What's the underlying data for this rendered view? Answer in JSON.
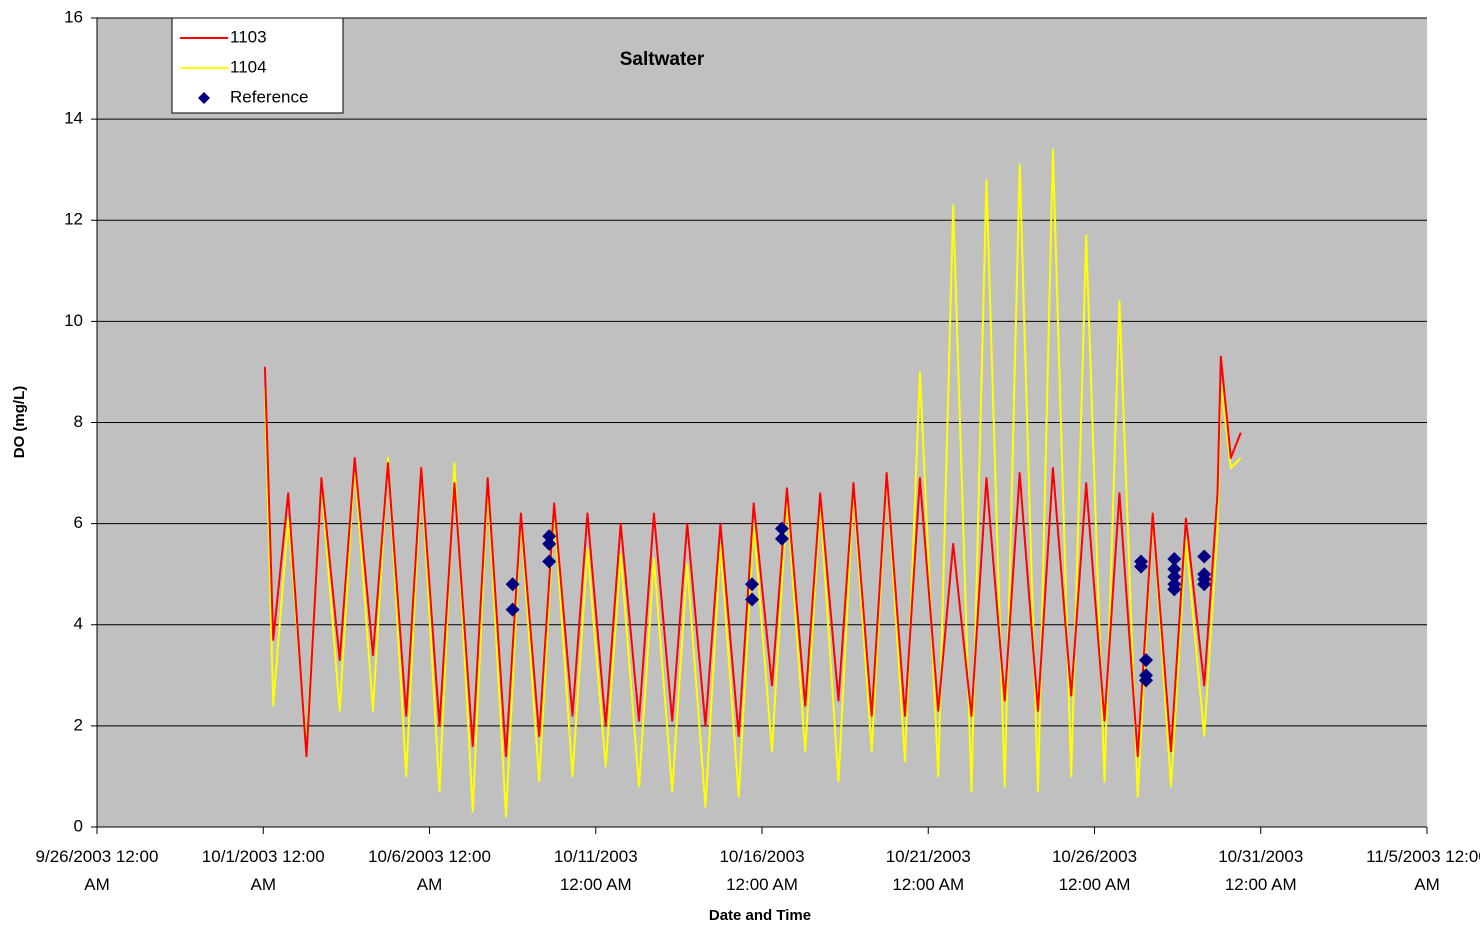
{
  "chart_data": {
    "type": "line",
    "title": "Saltwater",
    "x_label": "Date and Time",
    "y_label": "DO (mg/L)",
    "xlim": [
      0,
      40
    ],
    "xticks": [
      {
        "value": 0,
        "label": "9/26/2003 12:00 AM"
      },
      {
        "value": 5,
        "label": "10/1/2003 12:00 AM"
      },
      {
        "value": 10,
        "label": "10/6/2003 12:00 AM"
      },
      {
        "value": 15,
        "label": "10/11/2003 12:00 AM"
      },
      {
        "value": 20,
        "label": "10/16/2003 12:00 AM"
      },
      {
        "value": 25,
        "label": "10/21/2003 12:00 AM"
      },
      {
        "value": 30,
        "label": "10/26/2003 12:00 AM"
      },
      {
        "value": 35,
        "label": "10/31/2003 12:00 AM"
      },
      {
        "value": 40,
        "label": "11/5/2003 12:00 AM"
      }
    ],
    "ylim": [
      0,
      16
    ],
    "yticks": [
      0,
      2,
      4,
      6,
      8,
      10,
      12,
      14,
      16
    ],
    "grid": true,
    "legend": "top-left",
    "x": [
      5.05,
      5.3,
      5.75,
      6.3,
      6.75,
      7.3,
      7.75,
      8.3,
      8.75,
      9.3,
      9.75,
      10.3,
      10.75,
      11.3,
      11.75,
      12.3,
      12.75,
      13.3,
      13.75,
      14.3,
      14.75,
      15.3,
      15.75,
      16.3,
      16.75,
      17.3,
      17.75,
      18.3,
      18.75,
      19.3,
      19.75,
      20.3,
      20.75,
      21.3,
      21.75,
      22.3,
      22.75,
      23.3,
      23.75,
      24.3,
      24.75,
      25.3,
      25.75,
      26.3,
      26.75,
      27.3,
      27.75,
      28.3,
      28.75,
      29.3,
      29.75,
      30.3,
      30.75,
      31.3,
      31.75,
      32.3,
      32.75,
      33.3,
      33.7,
      33.8,
      34.1,
      34.4
    ],
    "series": [
      {
        "name": "1104",
        "color": "#ffff00",
        "values": [
          8.7,
          2.4,
          6.1,
          1.6,
          6.8,
          2.3,
          7.2,
          2.3,
          7.3,
          1.0,
          7.1,
          0.7,
          7.2,
          0.3,
          6.8,
          0.2,
          6.1,
          0.9,
          6.3,
          1.0,
          5.5,
          1.2,
          5.4,
          0.8,
          5.3,
          0.7,
          5.2,
          0.4,
          5.6,
          0.6,
          6.0,
          1.5,
          6.5,
          1.5,
          6.4,
          0.9,
          6.7,
          1.5,
          7.0,
          1.3,
          9.0,
          1.0,
          12.3,
          0.7,
          12.8,
          0.8,
          13.1,
          0.7,
          13.4,
          1.0,
          11.7,
          0.9,
          10.4,
          0.6,
          6.2,
          0.8,
          5.7,
          1.8,
          5.9,
          8.8,
          7.1,
          7.3
        ]
      },
      {
        "name": "1103",
        "color": "#ff0000",
        "values": [
          9.1,
          3.7,
          6.6,
          1.4,
          6.9,
          3.3,
          7.3,
          3.4,
          7.2,
          2.2,
          7.1,
          2.0,
          6.8,
          1.6,
          6.9,
          1.4,
          6.2,
          1.8,
          6.4,
          2.2,
          6.2,
          2.0,
          6.0,
          2.1,
          6.2,
          2.1,
          6.0,
          2.0,
          6.0,
          1.8,
          6.4,
          2.8,
          6.7,
          2.4,
          6.6,
          2.5,
          6.8,
          2.2,
          7.0,
          2.2,
          6.9,
          2.3,
          5.6,
          2.2,
          6.9,
          2.5,
          7.0,
          2.3,
          7.1,
          2.6,
          6.8,
          2.1,
          6.6,
          1.4,
          6.2,
          1.5,
          6.1,
          2.8,
          6.6,
          9.3,
          7.3,
          7.8
        ]
      },
      {
        "name": "Reference",
        "type": "scatter",
        "color": "#000080",
        "x": [
          12.5,
          12.5,
          13.6,
          13.6,
          13.6,
          19.7,
          19.7,
          20.6,
          20.6,
          31.4,
          31.4,
          31.55,
          31.55,
          31.55,
          32.4,
          32.4,
          32.4,
          32.4,
          32.4,
          33.3,
          33.3,
          33.3,
          33.3
        ],
        "values": [
          4.8,
          4.3,
          5.75,
          5.6,
          5.25,
          4.8,
          4.5,
          5.9,
          5.7,
          5.25,
          5.15,
          3.3,
          3.0,
          2.9,
          5.3,
          5.1,
          4.95,
          4.8,
          4.7,
          5.35,
          5.0,
          4.9,
          4.8
        ]
      }
    ]
  }
}
